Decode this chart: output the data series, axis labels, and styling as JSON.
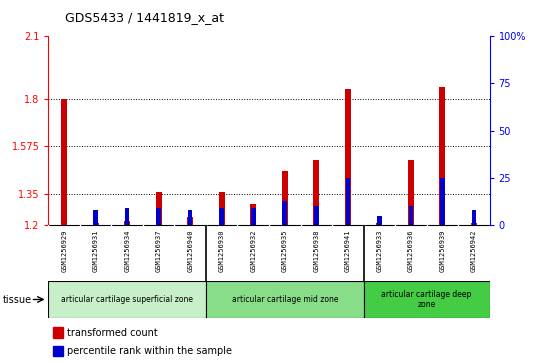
{
  "title": "GDS5433 / 1441819_x_at",
  "samples": [
    "GSM1256929",
    "GSM1256931",
    "GSM1256934",
    "GSM1256937",
    "GSM1256940",
    "GSM1256930",
    "GSM1256932",
    "GSM1256935",
    "GSM1256938",
    "GSM1256941",
    "GSM1256933",
    "GSM1256936",
    "GSM1256939",
    "GSM1256942"
  ],
  "transformed_count": [
    1.8,
    1.21,
    1.22,
    1.36,
    1.24,
    1.36,
    1.3,
    1.46,
    1.51,
    1.85,
    1.21,
    1.51,
    1.86,
    1.21
  ],
  "percentile_rank": [
    0,
    8,
    9,
    9,
    8,
    9,
    9,
    13,
    10,
    25,
    5,
    10,
    25,
    8
  ],
  "ylim_left": [
    1.2,
    2.1
  ],
  "ylim_right": [
    0,
    100
  ],
  "yticks_left": [
    1.2,
    1.35,
    1.575,
    1.8,
    2.1
  ],
  "yticks_right": [
    0,
    25,
    50,
    75,
    100
  ],
  "bar_color_red": "#cc0000",
  "bar_color_blue": "#0000cc",
  "zones": [
    {
      "label": "articular cartilage superficial zone",
      "start": 0,
      "end": 5,
      "color": "#c8f0c8"
    },
    {
      "label": "articular cartilage mid zone",
      "start": 5,
      "end": 10,
      "color": "#88dd88"
    },
    {
      "label": "articular cartilage deep\nzone",
      "start": 10,
      "end": 14,
      "color": "#44cc44"
    }
  ],
  "tissue_label": "tissue",
  "legend_red": "transformed count",
  "legend_blue": "percentile rank within the sample",
  "bar_width": 0.18
}
